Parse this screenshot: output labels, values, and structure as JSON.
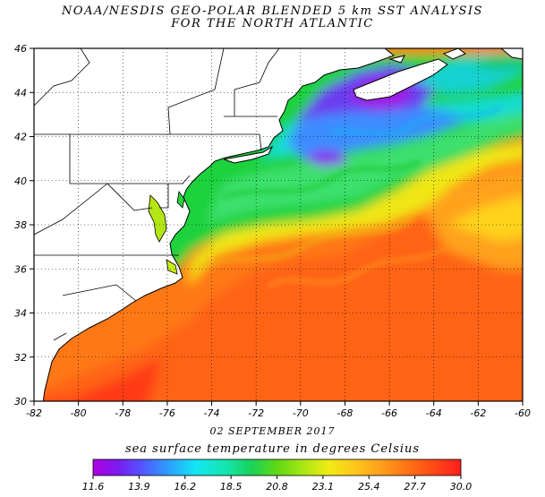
{
  "title_line1": "NOAA/NESDIS GEO-POLAR BLENDED 5 km SST ANALYSIS",
  "title_line2": "FOR THE NORTH ATLANTIC",
  "date": "02 SEPTEMBER 2017",
  "colorbar": {
    "title": "sea surface temperature in degrees Celsius",
    "ticks": [
      "11.6",
      "13.9",
      "16.2",
      "18.5",
      "20.8",
      "23.1",
      "25.4",
      "27.7",
      "30.0"
    ],
    "colors": [
      "#b000e0",
      "#7a1cf0",
      "#4f5cff",
      "#2aa4ff",
      "#14e6f2",
      "#14e6b0",
      "#19d25a",
      "#5fd814",
      "#a8e614",
      "#f0ec14",
      "#ffc21c",
      "#ff9a1c",
      "#ff7014",
      "#ff4616",
      "#ff1e1e"
    ]
  },
  "axes": {
    "x_ticks": [
      "-82",
      "-80",
      "-78",
      "-76",
      "-74",
      "-72",
      "-70",
      "-68",
      "-66",
      "-64",
      "-62",
      "-60"
    ],
    "y_ticks": [
      "30",
      "32",
      "34",
      "36",
      "38",
      "40",
      "42",
      "44",
      "46"
    ],
    "lon_range": [
      -82,
      -60
    ],
    "lat_range": [
      30,
      46
    ],
    "grid": "dotted"
  },
  "colors": {
    "land": "#ffffff",
    "coast": "#000000",
    "gulf_stream": "#ff5a14",
    "sargasso": "#ff8a1c",
    "shelf_green": "#22d232",
    "cold_purple": "#a01ee6"
  }
}
